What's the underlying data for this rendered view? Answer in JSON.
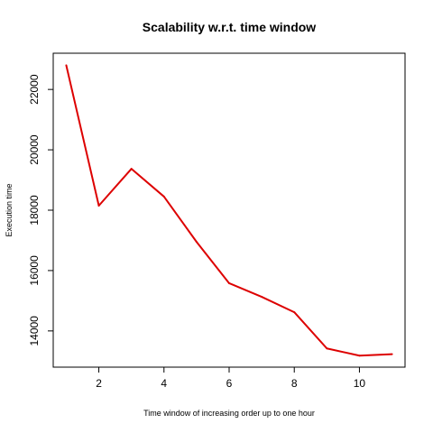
{
  "chart_data": {
    "type": "line",
    "title": "Scalability w.r.t. time window",
    "xlabel": "Time window of increasing order up to one hour",
    "ylabel": "Execution time",
    "x": [
      1,
      2,
      3,
      4,
      5,
      6,
      7,
      8,
      9,
      10,
      11
    ],
    "series": [
      {
        "values": [
          22800,
          18150,
          19370,
          18450,
          16950,
          15580,
          15130,
          14620,
          13420,
          13180,
          13230
        ]
      }
    ],
    "xticks": [
      2,
      4,
      6,
      8,
      10
    ],
    "yticks": [
      14000,
      16000,
      18000,
      20000,
      22000
    ],
    "xlim": [
      0.6,
      11.4
    ],
    "ylim": [
      12800,
      23200
    ],
    "line_color": "#dd0000",
    "grid": false,
    "legend": "none"
  }
}
